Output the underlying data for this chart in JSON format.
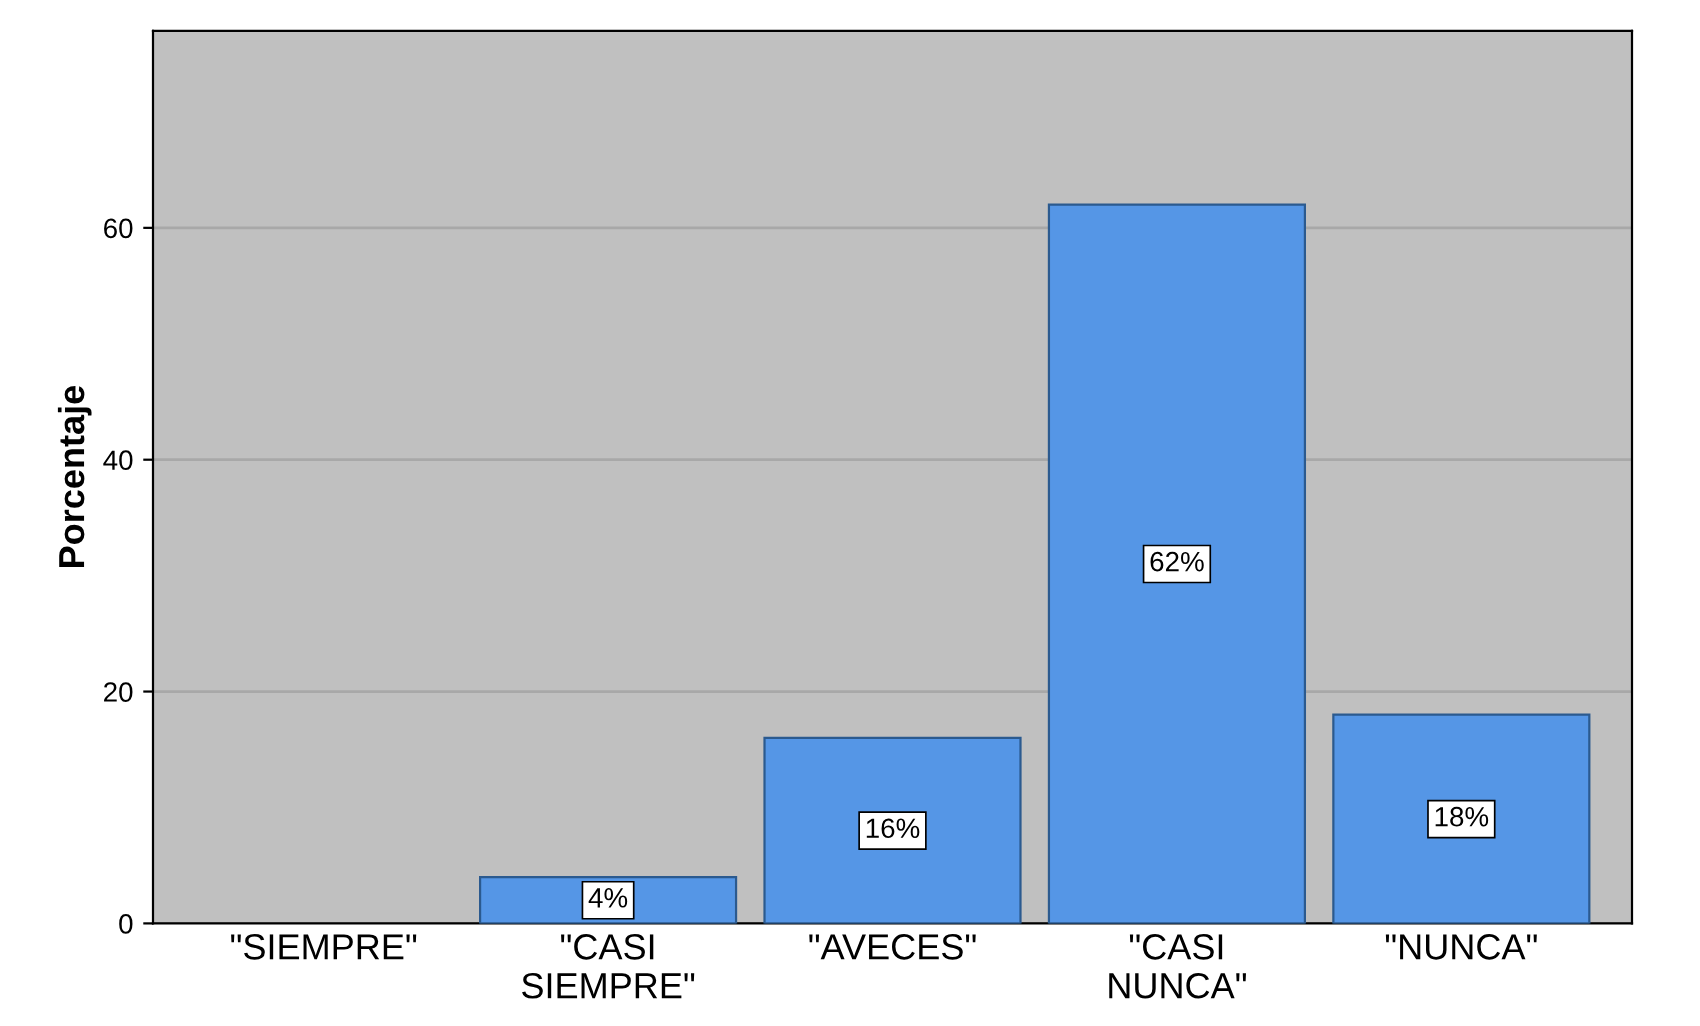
{
  "chart_data": {
    "type": "bar",
    "ylabel": "Porcentaje",
    "categories": [
      "\"SIEMPRE\"",
      "\"CASI\nSIEMPRE\"",
      "\"AVECES\"",
      "\"CASI\nNUNCA\"",
      "\"NUNCA\""
    ],
    "values": [
      null,
      4,
      16,
      62,
      18
    ],
    "value_labels": [
      null,
      "4%",
      "16%",
      "62%",
      "18%"
    ],
    "color": "#5596e6",
    "ylim": [
      0,
      77
    ],
    "yticks": [
      0,
      20,
      40,
      60
    ],
    "grid": "y",
    "legend": false
  }
}
